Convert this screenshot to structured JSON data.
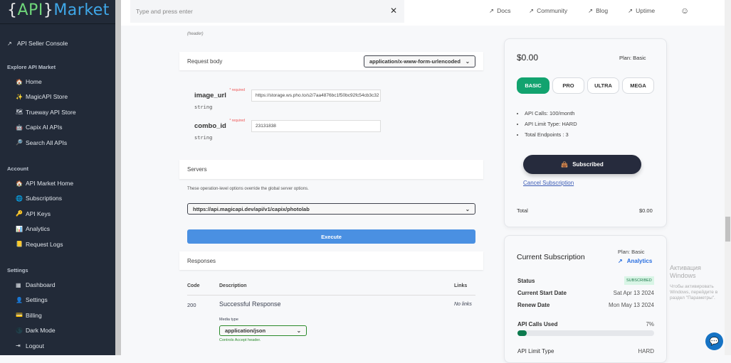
{
  "logo": {
    "open": "{",
    "api": "API",
    "close": "}",
    "market": "Market"
  },
  "sidebar": {
    "seller_console": "API Seller Console",
    "sections": [
      {
        "title": "Explore API Market",
        "items": [
          {
            "icon": "house-icon",
            "glyph": "🏠",
            "label": "Home"
          },
          {
            "icon": "sparkle-icon",
            "glyph": "✨",
            "label": "MagicAPI Store"
          },
          {
            "icon": "map-icon",
            "glyph": "🗺",
            "label": "Trueway API Store"
          },
          {
            "icon": "robot-icon",
            "glyph": "🤖",
            "label": "Capix AI APIs"
          },
          {
            "icon": "magnifier-icon",
            "glyph": "🔎",
            "label": "Search All APIs"
          }
        ]
      },
      {
        "title": "Account",
        "items": [
          {
            "icon": "house-icon",
            "glyph": "🏠",
            "label": "API Market Home"
          },
          {
            "icon": "globe-icon",
            "glyph": "🌐",
            "label": "Subscriptions"
          },
          {
            "icon": "key-icon",
            "glyph": "🔑",
            "label": "API Keys"
          },
          {
            "icon": "chart-icon",
            "glyph": "📊",
            "label": "Analytics"
          },
          {
            "icon": "ledger-icon",
            "glyph": "📒",
            "label": "Request Logs"
          }
        ]
      },
      {
        "title": "Settings",
        "items": [
          {
            "icon": "dashboard-icon",
            "glyph": "▦",
            "label": "Dashboard"
          },
          {
            "icon": "user-icon",
            "glyph": "👤",
            "label": "Settings"
          },
          {
            "icon": "card-icon",
            "glyph": "💳",
            "label": "Billing"
          },
          {
            "icon": "moon-icon",
            "glyph": "🌑",
            "label": "Dark Mode"
          },
          {
            "icon": "logout-icon",
            "glyph": "⇥",
            "label": "Logout"
          }
        ]
      }
    ]
  },
  "topbar": {
    "search_placeholder": "Type and press enter",
    "links": [
      "Docs",
      "Community",
      "Blog",
      "Uptime"
    ]
  },
  "main": {
    "header_note": "(header)",
    "request_body": {
      "title": "Request body",
      "content_type": "application/x-www-form-urlencoded",
      "fields": [
        {
          "name": "image_url",
          "required": "* required",
          "type": "string",
          "value": "https://storage.ws.pho.to/s2/7aa4876bc1f50bc92fc54cb3c32"
        },
        {
          "name": "combo_id",
          "required": "* required",
          "type": "string",
          "value": "23131838"
        }
      ]
    },
    "servers": {
      "title": "Servers",
      "note": "These operation-level options override the global server options.",
      "selected": "https://api.magicapi.dev/api/v1/capix/photolab"
    },
    "execute": "Execute",
    "responses": {
      "title": "Responses",
      "headers": [
        "Code",
        "Description",
        "Links"
      ],
      "rows": [
        {
          "code": "200",
          "description": "Successful Response",
          "links": "No links",
          "media_type_label": "Media type",
          "media_type": "application/json",
          "controls": "Controls Accept header."
        }
      ]
    }
  },
  "pricing": {
    "price": "$0.00",
    "plan": "Plan: Basic",
    "plans": [
      "BASIC",
      "PRO",
      "ULTRA",
      "MEGA"
    ],
    "active_plan": "BASIC",
    "features": [
      "API Calls: 100/month",
      "API Limit Type: HARD",
      "Total Endpoints : 3"
    ],
    "subscribed": "Subscribed",
    "cancel": "Cancel Subscription",
    "total_label": "Total",
    "total": "$0.00",
    "accent": "#12a36f"
  },
  "subscription": {
    "title": "Current Subscription",
    "plan": "Plan: Basic",
    "analytics": "Analytics",
    "status_label": "Status",
    "status": "SUBSCRIBED",
    "start_label": "Current Start Date",
    "start": "Sat Apr 13 2024",
    "renew_label": "Renew Date",
    "renew": "Mon May 13 2024",
    "calls_label": "API Calls Used",
    "calls_pct": "7%",
    "calls_fraction": 0.07,
    "limit_label": "API Limit Type",
    "limit": "HARD"
  },
  "watermark": {
    "title": "Активация Windows",
    "text": "Чтобы активировать Windows, перейдите в раздел \"Параметры\"."
  }
}
